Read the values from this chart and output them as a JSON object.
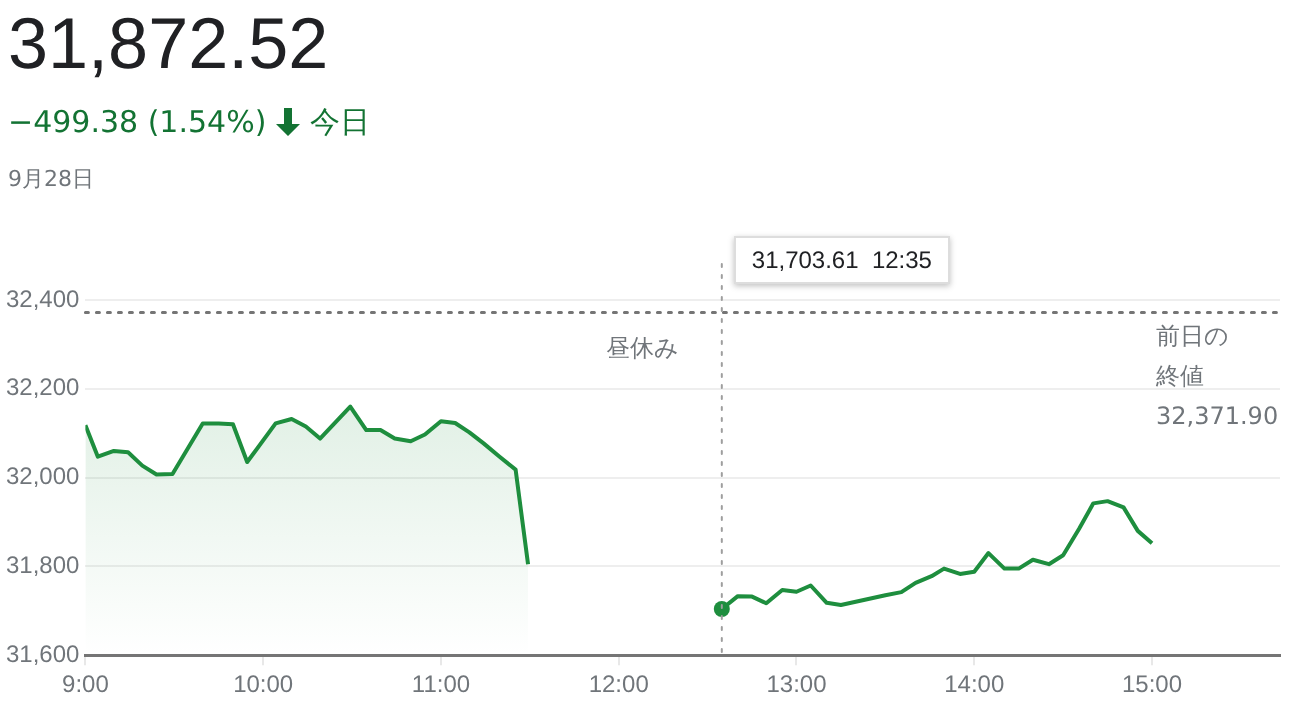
{
  "chart_data": {
    "type": "line",
    "title": "31,872.52",
    "subtitle": "−499.38 (1.54%) 今日",
    "annotations": [
      "9月28日",
      "昼休み",
      "31,703.61  12:35"
    ],
    "series": [
      {
        "type": "area",
        "color": "#1e8e3e",
        "x": [
          9.0,
          9.07,
          9.16,
          9.24,
          9.32,
          9.4,
          9.49,
          9.66,
          9.75,
          9.83,
          9.91,
          10.07,
          10.16,
          10.24,
          10.32,
          10.49,
          10.58,
          10.66,
          10.74,
          10.83,
          10.91,
          11.0,
          11.08,
          11.16,
          11.24,
          11.33,
          11.42,
          11.49
        ],
        "values": [
          32118,
          32047,
          32060,
          32057,
          32027,
          32007,
          32008,
          32122,
          32122,
          32120,
          32035,
          32122,
          32132,
          32115,
          32088,
          32160,
          32107,
          32107,
          32088,
          32082,
          32097,
          32127,
          32123,
          32102,
          32077,
          32047,
          32018,
          31805
        ]
      },
      {
        "color": "#1e8e3e",
        "x": [
          12.58,
          12.67,
          12.75,
          12.83,
          12.92,
          13.0,
          13.08,
          13.17,
          13.25,
          13.5,
          13.59,
          13.67,
          13.76,
          13.83,
          13.92,
          14.0,
          14.08,
          14.17,
          14.25,
          14.33,
          14.42,
          14.5,
          14.59,
          14.67,
          14.75,
          14.84,
          14.92,
          15.0
        ],
        "values": [
          31704,
          31733,
          31732,
          31717,
          31747,
          31743,
          31757,
          31718,
          31713,
          31735,
          31742,
          31763,
          31778,
          31795,
          31783,
          31788,
          31830,
          31795,
          31795,
          31815,
          31805,
          31825,
          31885,
          31942,
          31947,
          31933,
          31880,
          31852
        ]
      },
      {
        "type": "scatter",
        "color": "#1e8e3e",
        "x": [
          12.58
        ],
        "values": [
          31704
        ],
        "marker": "circle"
      }
    ],
    "xlim": [
      9,
      15.72
    ],
    "xticks": [
      {
        "value": 9,
        "label": "9:00"
      },
      {
        "value": 10,
        "label": "10:00"
      },
      {
        "value": 11,
        "label": "11:00"
      },
      {
        "value": 12,
        "label": "12:00"
      },
      {
        "value": 13,
        "label": "13:00"
      },
      {
        "value": 14,
        "label": "14:00"
      },
      {
        "value": 15,
        "label": "15:00"
      }
    ],
    "ylim": [
      31600,
      32400
    ],
    "yticks": [
      {
        "value": 31600,
        "label": "31,600"
      },
      {
        "value": 31800,
        "label": "31,800"
      },
      {
        "value": 32000,
        "label": "32,000"
      },
      {
        "value": 32200,
        "label": "32,200"
      },
      {
        "value": 32400,
        "label": "32,400"
      }
    ],
    "ref_lines": [
      {
        "axis": "y",
        "value": 32371.9,
        "label": "前日の終値 32,371.90",
        "color": "#757575",
        "line_style": "dotted"
      },
      {
        "axis": "x",
        "value": 12.58,
        "color": "#9e9e9e",
        "line_style": "dotted"
      }
    ],
    "grid": "y",
    "legend": false,
    "marker": "none",
    "line_style": "solid"
  }
}
